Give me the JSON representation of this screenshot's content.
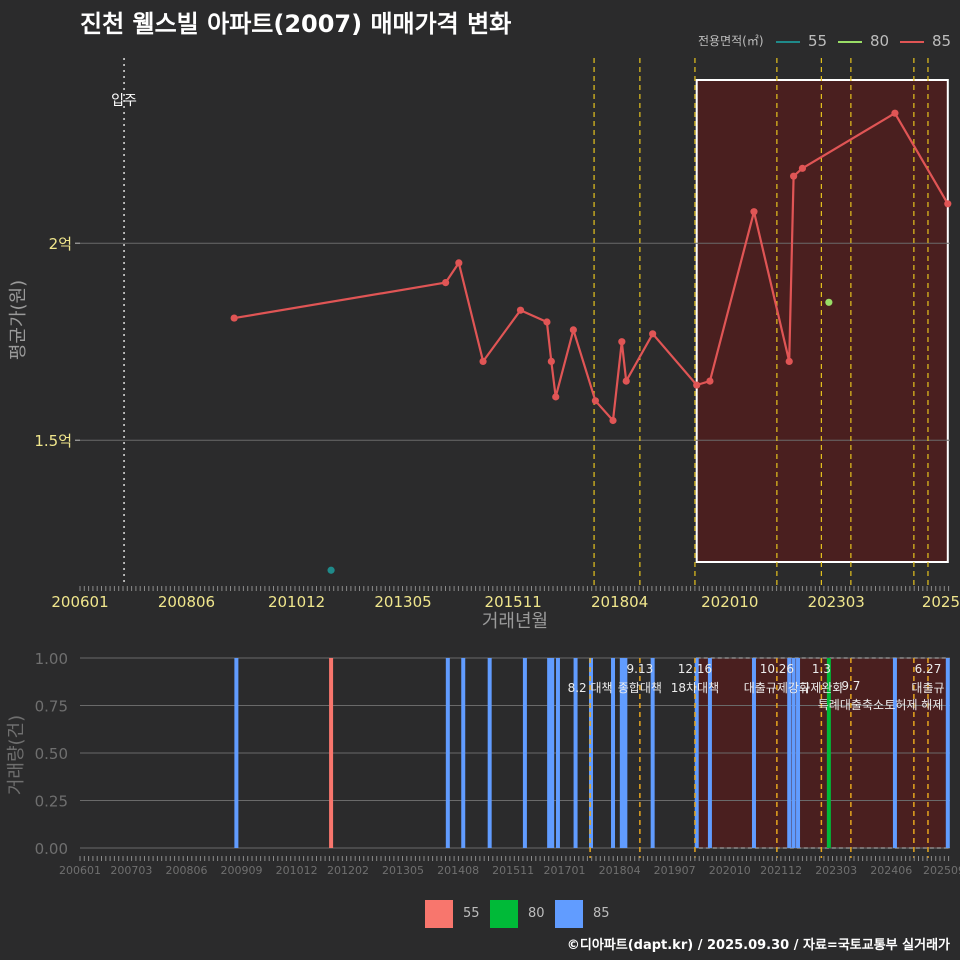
{
  "title": "진천 웰스빌 아파트(2007) 매매가격 변화",
  "footer": "©디아파트(dapt.kr) / 2025.09.30 / 자료=국토교통부 실거래가",
  "legend_top": {
    "title": "전용면적(㎡)",
    "items": [
      {
        "label": "55",
        "color": "#1f8a8a"
      },
      {
        "label": "80",
        "color": "#99dd66"
      },
      {
        "label": "85",
        "color": "#e05555"
      }
    ]
  },
  "legend_bottom": {
    "items": [
      {
        "label": "55",
        "color": "#f8766d"
      },
      {
        "label": "80",
        "color": "#00ba38"
      },
      {
        "label": "85",
        "color": "#619cff"
      }
    ]
  },
  "chart_data": [
    {
      "type": "line",
      "title": "진천 웰스빌 아파트(2007) 매매가격 변화",
      "xlabel": "거래년월",
      "ylabel": "평균가(원)",
      "x_ticks": [
        "200601",
        "200806",
        "201012",
        "201305",
        "201511",
        "201804",
        "202010",
        "202303",
        "2025"
      ],
      "y_ticks": [
        {
          "value": 1.5,
          "label": "1.5억"
        },
        {
          "value": 2.0,
          "label": "2억"
        }
      ],
      "xlim": [
        2006.0,
        2025.75
      ],
      "ylim": [
        1.13,
        2.47
      ],
      "movein": {
        "label": "입주",
        "x": 2007.0
      },
      "policy_lines": [
        2017.67,
        2018.71,
        2019.96,
        2021.82,
        2022.83,
        2023.5,
        2024.93,
        2025.25
      ],
      "highlight_range": [
        2020.0,
        2025.7
      ],
      "series": [
        {
          "name": "85",
          "color": "#e05555",
          "points": [
            [
              2009.5,
              1.81
            ],
            [
              2014.3,
              1.9
            ],
            [
              2014.6,
              1.95
            ],
            [
              2015.15,
              1.7
            ],
            [
              2016.0,
              1.83
            ],
            [
              2016.6,
              1.8
            ],
            [
              2016.7,
              1.7
            ],
            [
              2016.8,
              1.61
            ],
            [
              2017.2,
              1.78
            ],
            [
              2017.7,
              1.6
            ],
            [
              2018.1,
              1.55
            ],
            [
              2018.3,
              1.75
            ],
            [
              2018.4,
              1.65
            ],
            [
              2019.0,
              1.77
            ],
            [
              2020.0,
              1.64
            ],
            [
              2020.3,
              1.65
            ],
            [
              2021.3,
              2.08
            ],
            [
              2022.1,
              1.7
            ],
            [
              2022.2,
              2.17
            ],
            [
              2022.4,
              2.19
            ],
            [
              2024.5,
              2.33
            ],
            [
              2025.7,
              2.1
            ]
          ]
        },
        {
          "name": "80",
          "color": "#99dd66",
          "points": [
            [
              2023.0,
              1.85
            ]
          ]
        },
        {
          "name": "55",
          "color": "#1f8a8a",
          "points": [
            [
              2011.7,
              1.17
            ]
          ]
        }
      ]
    },
    {
      "type": "bar",
      "ylabel": "거래량(건)",
      "x_ticks": [
        "200601",
        "200703",
        "200806",
        "200909",
        "201012",
        "201202",
        "201305",
        "201408",
        "201511",
        "201701",
        "201804",
        "201907",
        "202010",
        "202112",
        "202303",
        "202406",
        "202509"
      ],
      "y_ticks": [
        "0.00",
        "0.25",
        "0.50",
        "0.75",
        "1.00"
      ],
      "xlim": [
        2006.0,
        2025.75
      ],
      "ylim": [
        0,
        1
      ],
      "bars": [
        {
          "x": 2009.55,
          "series": "85",
          "value": 1
        },
        {
          "x": 2011.7,
          "series": "55",
          "value": 1
        },
        {
          "x": 2014.35,
          "series": "85",
          "value": 1
        },
        {
          "x": 2014.7,
          "series": "85",
          "value": 1
        },
        {
          "x": 2015.3,
          "series": "85",
          "value": 1
        },
        {
          "x": 2016.1,
          "series": "85",
          "value": 1
        },
        {
          "x": 2016.65,
          "series": "85",
          "value": 1
        },
        {
          "x": 2016.72,
          "series": "85",
          "value": 1
        },
        {
          "x": 2016.85,
          "series": "85",
          "value": 1
        },
        {
          "x": 2017.25,
          "series": "85",
          "value": 1
        },
        {
          "x": 2017.6,
          "series": "85",
          "value": 1
        },
        {
          "x": 2018.1,
          "series": "85",
          "value": 1
        },
        {
          "x": 2018.3,
          "series": "85",
          "value": 1
        },
        {
          "x": 2018.38,
          "series": "85",
          "value": 1
        },
        {
          "x": 2019.0,
          "series": "85",
          "value": 1
        },
        {
          "x": 2020.0,
          "series": "85",
          "value": 1
        },
        {
          "x": 2020.3,
          "series": "85",
          "value": 1
        },
        {
          "x": 2021.3,
          "series": "85",
          "value": 1
        },
        {
          "x": 2022.1,
          "series": "85",
          "value": 1
        },
        {
          "x": 2022.2,
          "series": "85",
          "value": 1
        },
        {
          "x": 2022.3,
          "series": "85",
          "value": 1
        },
        {
          "x": 2023.0,
          "series": "80",
          "value": 1
        },
        {
          "x": 2024.5,
          "series": "85",
          "value": 1
        },
        {
          "x": 2025.7,
          "series": "85",
          "value": 1
        }
      ],
      "policy_lines": [
        2017.58,
        2018.71,
        2019.96,
        2021.82,
        2022.83,
        2023.5,
        2024.93,
        2025.25
      ],
      "highlight_range": [
        2020.0,
        2025.7
      ],
      "annotations": [
        {
          "x": 2017.58,
          "date": "",
          "text": "8.2 대책"
        },
        {
          "x": 2018.71,
          "date": "9.13",
          "text": "종합대책"
        },
        {
          "x": 2019.96,
          "date": "12.16",
          "text": "18차대책"
        },
        {
          "x": 2021.82,
          "date": "10.26",
          "text": "대출규제강화"
        },
        {
          "x": 2022.83,
          "date": "1.3",
          "text": "규제완화"
        },
        {
          "x": 2023.5,
          "date": "9.7",
          "text": "특례대출축소"
        },
        {
          "x": 2024.93,
          "date": "",
          "text": "토허제 해제"
        },
        {
          "x": 2025.25,
          "date": "6.27",
          "text": "대출규"
        }
      ]
    }
  ]
}
